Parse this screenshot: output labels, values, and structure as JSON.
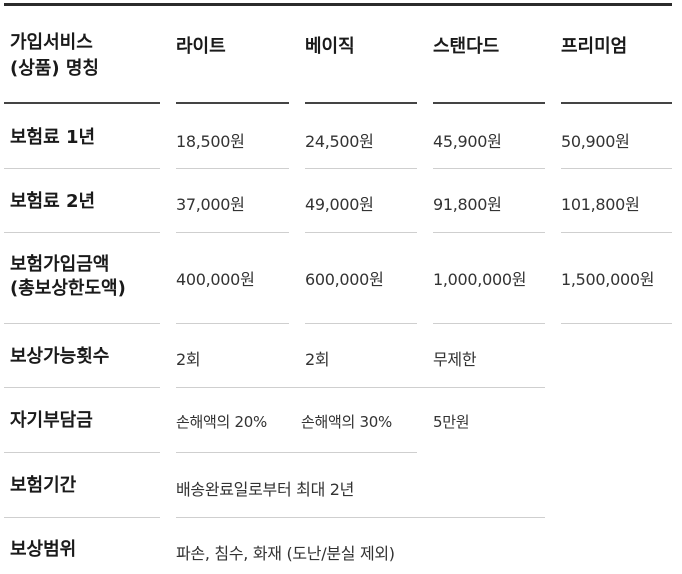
{
  "header": {
    "service_line1": "가입서비스",
    "service_line2": "(상품) 명칭",
    "plans": [
      "라이트",
      "베이직",
      "스탠다드",
      "프리미엄"
    ]
  },
  "rows": [
    {
      "label": "보험료 1년",
      "values": [
        "18,500원",
        "24,500원",
        "45,900원",
        "50,900원"
      ]
    },
    {
      "label": "보험료 2년",
      "values": [
        "37,000원",
        "49,000원",
        "91,800원",
        "101,800원"
      ]
    },
    {
      "label_line1": "보험가입금액",
      "label_line2": "(총보상한도액)",
      "values": [
        "400,000원",
        "600,000원",
        "1,000,000원",
        "1,500,000원"
      ]
    },
    {
      "label": "보상가능횟수",
      "values": [
        "2회",
        "2회",
        "무제한"
      ]
    },
    {
      "label": "자기부담금",
      "values": [
        "손해액의 20%",
        "손해액의 30%",
        "5만원"
      ]
    },
    {
      "label": "보험기간",
      "value": "배송완료일로부터 최대 2년"
    },
    {
      "label": "보상범위",
      "value": "파손, 침수, 화재 (도난/분실 제외)"
    }
  ]
}
